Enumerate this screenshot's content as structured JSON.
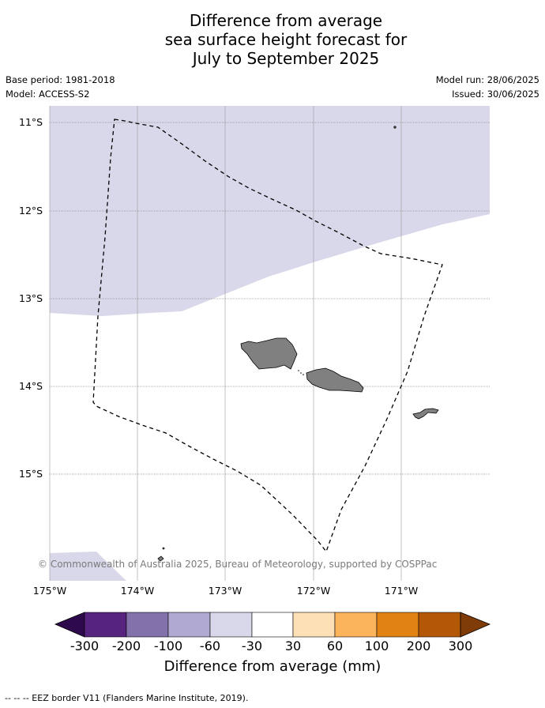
{
  "title_lines": [
    "Difference from average",
    "sea surface height forecast for",
    "July to September 2025"
  ],
  "base_period": "Base period: 1981-2018",
  "model": "Model: ACCESS-S2",
  "model_run": "Model run: 28/06/2025",
  "issued": "Issued: 30/06/2025",
  "copyright": "© Commonwealth of Australia 2025, Bureau of Meteorology, supported by COSPPac",
  "lat_labels": [
    "11°S",
    "12°S",
    "13°S",
    "14°S",
    "15°S"
  ],
  "lon_labels": [
    "175°W",
    "174°W",
    "173°W",
    "172°W",
    "171°W"
  ],
  "colorbar": {
    "ticks": [
      "-300",
      "-200",
      "-100",
      "-60",
      "-30",
      "30",
      "60",
      "100",
      "200",
      "300"
    ],
    "colors": [
      "#2e0a4d",
      "#56237f",
      "#8271ab",
      "#b0a9d2",
      "#d8d8ea",
      "#ffffff",
      "#fee0b6",
      "#fbb45c",
      "#e08214",
      "#b35806",
      "#7f3b08"
    ],
    "title": "Difference from average (mm)"
  },
  "colors": {
    "fill_light_purple": "#d8d8ea",
    "land": "#808080"
  },
  "footer": "-- -- -- EEZ border V11 (Flanders Marine Institute, 2019)."
}
